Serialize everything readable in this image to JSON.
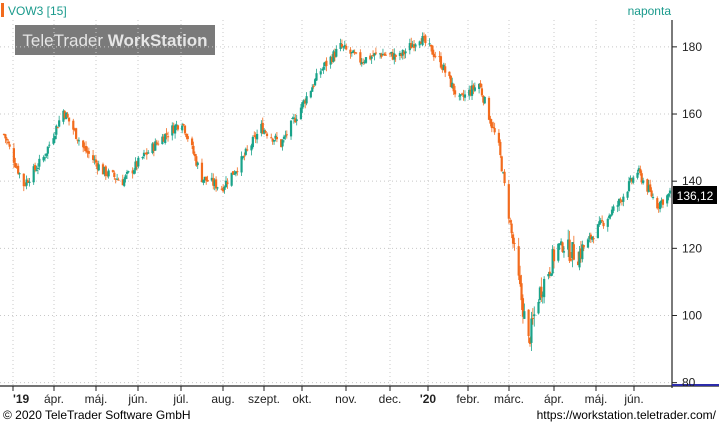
{
  "header": {
    "symbol": "VOW3 [15]",
    "interval": "naponta",
    "watermark_light": "TeleTrader ",
    "watermark_bold": "WorkStation"
  },
  "footer": {
    "copyright": "© 2020 TeleTrader Software GmbH",
    "url": "https://workstation.teletrader.com/"
  },
  "colors": {
    "up": "#1aa38a",
    "down": "#f26b1d",
    "accent": "#1a9a8c",
    "frame": "#2b2baa",
    "grid": "#c8c8c8",
    "axis_text": "#222222",
    "watermark_bg": "#7a7a7a",
    "last_price_bg": "#000000"
  },
  "chart_data": {
    "type": "candlestick",
    "title": "",
    "xlabel": "",
    "ylabel": "",
    "ylim": [
      79,
      188
    ],
    "y_ticks": [
      "80",
      "100",
      "120",
      "140",
      "160",
      "180"
    ],
    "x_ticks": [
      "'19",
      "ápr.",
      "máj.",
      "jún.",
      "júl.",
      "aug.",
      "szept.",
      "okt.",
      "nov.",
      "dec.",
      "'20",
      "febr.",
      "márc.",
      "ápr.",
      "máj.",
      "jún."
    ],
    "last_price": "136,12",
    "grid": true,
    "series": [
      {
        "values": [
          {
            "date": "2019-03-18",
            "close": 154
          },
          {
            "date": "2019-04-01",
            "close": 139
          },
          {
            "date": "2019-04-15",
            "close": 147
          },
          {
            "date": "2019-04-29",
            "close": 161
          },
          {
            "date": "2019-05-13",
            "close": 150
          },
          {
            "date": "2019-05-27",
            "close": 143
          },
          {
            "date": "2019-06-10",
            "close": 140
          },
          {
            "date": "2019-06-24",
            "close": 147
          },
          {
            "date": "2019-07-08",
            "close": 153
          },
          {
            "date": "2019-07-22",
            "close": 158
          },
          {
            "date": "2019-08-05",
            "close": 141
          },
          {
            "date": "2019-08-19",
            "close": 138
          },
          {
            "date": "2019-09-02",
            "close": 146
          },
          {
            "date": "2019-09-16",
            "close": 156
          },
          {
            "date": "2019-09-30",
            "close": 151
          },
          {
            "date": "2019-10-14",
            "close": 162
          },
          {
            "date": "2019-10-28",
            "close": 173
          },
          {
            "date": "2019-11-11",
            "close": 180
          },
          {
            "date": "2019-11-25",
            "close": 176
          },
          {
            "date": "2019-12-09",
            "close": 178
          },
          {
            "date": "2019-12-23",
            "close": 177
          },
          {
            "date": "2020-01-06",
            "close": 183
          },
          {
            "date": "2020-01-20",
            "close": 176
          },
          {
            "date": "2020-02-03",
            "close": 164
          },
          {
            "date": "2020-02-17",
            "close": 169
          },
          {
            "date": "2020-03-02",
            "close": 150
          },
          {
            "date": "2020-03-16",
            "close": 110
          },
          {
            "date": "2020-03-23",
            "close": 92
          },
          {
            "date": "2020-03-30",
            "close": 106
          },
          {
            "date": "2020-04-13",
            "close": 121
          },
          {
            "date": "2020-04-27",
            "close": 118
          },
          {
            "date": "2020-05-11",
            "close": 126
          },
          {
            "date": "2020-05-25",
            "close": 133
          },
          {
            "date": "2020-06-08",
            "close": 143
          },
          {
            "date": "2020-06-22",
            "close": 133
          },
          {
            "date": "2020-07-01",
            "close": 136.12
          }
        ]
      }
    ]
  }
}
